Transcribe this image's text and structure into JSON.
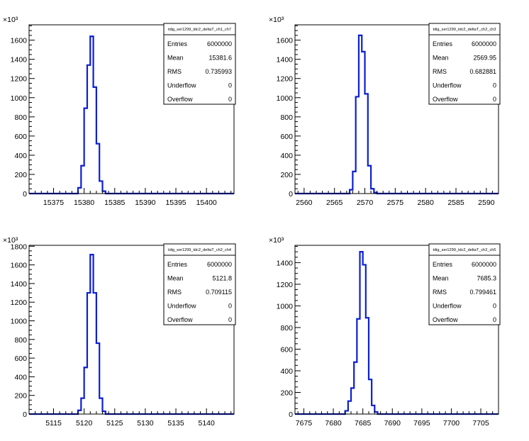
{
  "chart_data": [
    {
      "type": "bar",
      "stats_title": "tdig_ser1299_tdc2_deltaT_ch1_ch7",
      "entries": "6000000",
      "mean": "15381.6",
      "rms": "0.735993",
      "underflow": "0",
      "overflow": "0",
      "entries_label": "Entries",
      "mean_label": "Mean",
      "rms_label": "RMS",
      "underflow_label": "Underflow",
      "overflow_label": "Overflow",
      "y_exponent_label": "×10³",
      "xlim": [
        15371,
        15404.5
      ],
      "ylim": [
        0,
        1760
      ],
      "xticks": [
        15375,
        15380,
        15385,
        15390,
        15395,
        15400
      ],
      "yticks": [
        0,
        200,
        400,
        600,
        800,
        1000,
        1200,
        1400,
        1600
      ],
      "bin_edges": [
        15379,
        15379.5,
        15380,
        15380.5,
        15381,
        15381.5,
        15382,
        15382.5,
        15383,
        15383.5
      ],
      "counts": [
        60,
        290,
        890,
        1340,
        1640,
        1110,
        520,
        130,
        25
      ]
    },
    {
      "type": "bar",
      "stats_title": "tdig_ser1299_tdc2_deltaT_ch2_ch3",
      "entries": "6000000",
      "mean": "2569.95",
      "rms": "0.682881",
      "underflow": "0",
      "overflow": "0",
      "entries_label": "Entries",
      "mean_label": "Mean",
      "rms_label": "RMS",
      "underflow_label": "Underflow",
      "overflow_label": "Overflow",
      "y_exponent_label": "×10³",
      "xlim": [
        2558.5,
        2592
      ],
      "ylim": [
        0,
        1760
      ],
      "xticks": [
        2560,
        2565,
        2570,
        2575,
        2580,
        2585,
        2590
      ],
      "yticks": [
        0,
        200,
        400,
        600,
        800,
        1000,
        1200,
        1400,
        1600
      ],
      "bin_edges": [
        2567.5,
        2568,
        2568.5,
        2569,
        2569.5,
        2570,
        2570.5,
        2571,
        2571.5,
        2572
      ],
      "counts": [
        40,
        230,
        1010,
        1650,
        1480,
        1040,
        290,
        50,
        10
      ]
    },
    {
      "type": "bar",
      "stats_title": "tdig_ser1299_tdc2_deltaT_ch2_ch4",
      "entries": "6000000",
      "mean": "5121.8",
      "rms": "0.709115",
      "underflow": "0",
      "overflow": "0",
      "entries_label": "Entries",
      "mean_label": "Mean",
      "rms_label": "RMS",
      "underflow_label": "Underflow",
      "overflow_label": "Overflow",
      "y_exponent_label": "×10³",
      "xlim": [
        5111,
        5144.5
      ],
      "ylim": [
        0,
        1810
      ],
      "xticks": [
        5115,
        5120,
        5125,
        5130,
        5135,
        5140
      ],
      "yticks": [
        0,
        200,
        400,
        600,
        800,
        1000,
        1200,
        1400,
        1600,
        1800
      ],
      "bin_edges": [
        5119,
        5119.5,
        5120,
        5120.5,
        5121,
        5121.5,
        5122,
        5122.5,
        5123,
        5123.5
      ],
      "counts": [
        40,
        170,
        500,
        1300,
        1710,
        1300,
        760,
        170,
        30
      ]
    },
    {
      "type": "bar",
      "stats_title": "tdig_ser1299_tdc2_deltaT_ch2_ch5",
      "entries": "6000000",
      "mean": "7685.3",
      "rms": "0.799461",
      "underflow": "0",
      "overflow": "0",
      "entries_label": "Entries",
      "mean_label": "Mean",
      "rms_label": "RMS",
      "underflow_label": "Underflow",
      "overflow_label": "Overflow",
      "y_exponent_label": "×10³",
      "xlim": [
        7673.5,
        7708
      ],
      "ylim": [
        0,
        1560
      ],
      "xticks": [
        7675,
        7680,
        7685,
        7690,
        7695,
        7700,
        7705
      ],
      "yticks": [
        0,
        200,
        400,
        600,
        800,
        1000,
        1200,
        1400
      ],
      "bin_edges": [
        7682,
        7682.5,
        7683,
        7683.5,
        7684,
        7684.5,
        7685,
        7685.5,
        7686,
        7686.5,
        7687,
        7687.5
      ],
      "counts": [
        30,
        120,
        240,
        480,
        880,
        1500,
        1380,
        890,
        320,
        80,
        20
      ]
    }
  ],
  "colors": {
    "histogram_line": "#0b1fd4",
    "frame": "#000000",
    "background": "#ffffff"
  }
}
